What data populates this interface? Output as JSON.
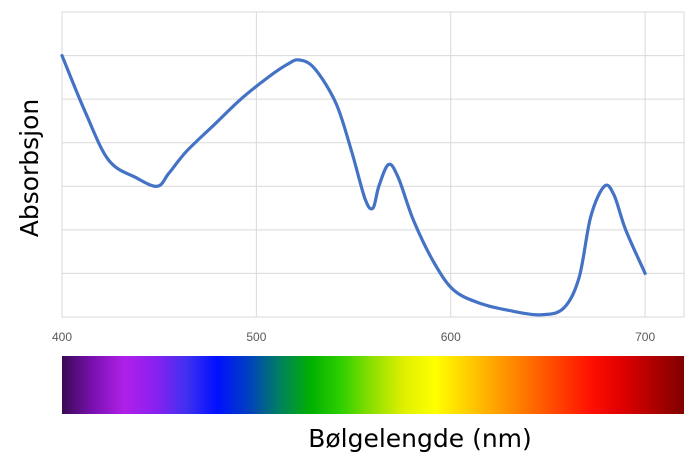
{
  "chart_data": {
    "type": "line",
    "title": "",
    "xlabel": "Bølgelengde (nm)",
    "ylabel": "Absorbsjon",
    "xlim": [
      400,
      720
    ],
    "ylim": [
      0,
      7
    ],
    "x_ticks": [
      "400",
      "500",
      "600",
      "700"
    ],
    "y_tick_labels_shown": false,
    "grid": true,
    "legend": "none",
    "series": [
      {
        "color": "#4472C4",
        "x": [
          400,
          412,
          424,
          438,
          449,
          455,
          464,
          478,
          492,
          506,
          516,
          522,
          530,
          541,
          549,
          556,
          560,
          563,
          568,
          573,
          581,
          592,
          602,
          616,
          630,
          646,
          658,
          666,
          672,
          679,
          684,
          690,
          700
        ],
        "y": [
          6.0,
          4.7,
          3.6,
          3.2,
          3.0,
          3.3,
          3.8,
          4.4,
          5.0,
          5.5,
          5.8,
          5.9,
          5.7,
          4.9,
          3.8,
          2.7,
          2.5,
          3.0,
          3.5,
          3.2,
          2.2,
          1.2,
          0.6,
          0.3,
          0.15,
          0.05,
          0.2,
          0.9,
          2.3,
          3.0,
          2.8,
          2.0,
          1.0
        ]
      }
    ],
    "spectrum_bar": {
      "gradient": [
        "#3a0a55",
        "#7a10b0",
        "#b020e8",
        "#8a20f0",
        "#4030f0",
        "#0010ff",
        "#0040c0",
        "#008060",
        "#00b000",
        "#30d000",
        "#90e000",
        "#e0f000",
        "#ffff00",
        "#ffd000",
        "#ffa000",
        "#ff7000",
        "#ff4000",
        "#ff1000",
        "#e00000",
        "#b00000",
        "#800000"
      ]
    }
  }
}
